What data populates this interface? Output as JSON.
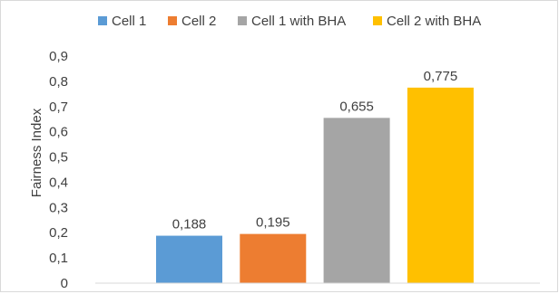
{
  "chart_data": {
    "type": "bar",
    "title": "",
    "xlabel": "",
    "ylabel": "Fairness Index",
    "ylim": [
      0,
      0.9
    ],
    "yticks": [
      "0",
      "0,1",
      "0,2",
      "0,3",
      "0,4",
      "0,5",
      "0,6",
      "0,7",
      "0,8",
      "0,9"
    ],
    "grid": false,
    "legend_position": "top",
    "series": [
      {
        "name": "Cell 1",
        "value": 0.188,
        "label": "0,188",
        "color": "#5b9bd5"
      },
      {
        "name": "Cell 2",
        "value": 0.195,
        "label": "0,195",
        "color": "#ed7d31"
      },
      {
        "name": "Cell 1 with BHA",
        "value": 0.655,
        "label": "0,655",
        "color": "#a5a5a5"
      },
      {
        "name": "Cell 2 with BHA",
        "value": 0.775,
        "label": "0,775",
        "color": "#ffc000"
      }
    ]
  }
}
